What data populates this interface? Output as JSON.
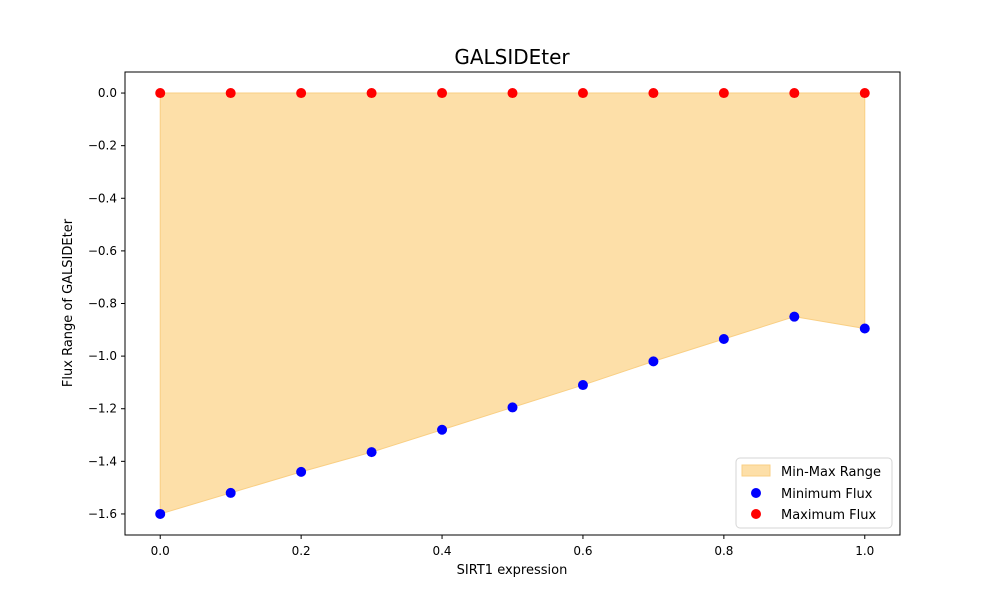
{
  "chart_data": {
    "type": "scatter",
    "title": "GALSIDEter",
    "xlabel": "SIRT1 expression",
    "ylabel": "Flux Range of GALSIDEter",
    "xlim": [
      -0.05,
      1.05
    ],
    "ylim": [
      -1.68,
      0.08
    ],
    "xticks": [
      0.0,
      0.2,
      0.4,
      0.6,
      0.8,
      1.0
    ],
    "yticks": [
      0.0,
      -0.2,
      -0.4,
      -0.6,
      -0.8,
      -1.0,
      -1.2,
      -1.4,
      -1.6
    ],
    "xtick_labels": [
      "0.0",
      "0.2",
      "0.4",
      "0.6",
      "0.8",
      "1.0"
    ],
    "ytick_labels": [
      "0.0",
      "−0.2",
      "−0.4",
      "−0.6",
      "−0.8",
      "−1.0",
      "−1.2",
      "−1.4",
      "−1.6"
    ],
    "x": [
      0.0,
      0.1,
      0.2,
      0.3,
      0.4,
      0.5,
      0.6,
      0.7,
      0.8,
      0.9,
      1.0
    ],
    "grid": false,
    "legend_position": "bottom-right",
    "series": [
      {
        "name": "Min-Max Range",
        "kind": "fill_between",
        "color": "#fddfa8",
        "edge_color": "#f9cf84"
      },
      {
        "name": "Minimum Flux",
        "kind": "scatter",
        "color": "#0000ff",
        "values": [
          -1.6,
          -1.52,
          -1.44,
          -1.365,
          -1.28,
          -1.195,
          -1.11,
          -1.02,
          -0.935,
          -0.85,
          -0.895
        ]
      },
      {
        "name": "Maximum Flux",
        "kind": "scatter",
        "color": "#ff0000",
        "values": [
          0.0,
          0.0,
          0.0,
          0.0,
          0.0,
          0.0,
          0.0,
          0.0,
          0.0,
          0.0,
          0.0
        ]
      }
    ]
  }
}
